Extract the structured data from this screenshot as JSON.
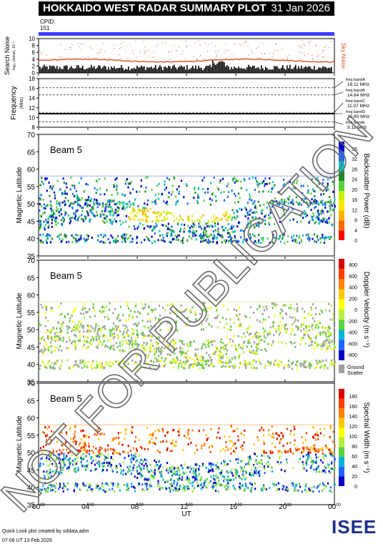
{
  "header": {
    "title": "HOKKAIDO WEST RADAR SUMMARY PLOT",
    "date": "31 Jan 2026",
    "cpid_label": "CPID:",
    "cpid_value": "151"
  },
  "colors": {
    "cpid_bar": "#3b3bff",
    "sky_noise": "#e0501e",
    "ground_scatter": "#a0a0a0",
    "logo_blue": "#1a2f8f",
    "logo_green": "#23a84a"
  },
  "chart_data": [
    {
      "type": "bar",
      "name": "search-noise-panel",
      "ylabel_line1": "Search Noise",
      "ylabel_line2": "log₁₀ (noise), 10⁻³",
      "ylim": [
        0,
        10
      ],
      "yticks": [
        "0",
        "2",
        "4",
        "6",
        "8",
        "10"
      ],
      "legend": "Sky Noise"
    },
    {
      "type": "line",
      "name": "frequency-panel",
      "ylabel": "Frequency",
      "yunit": "(MHz)",
      "ylim": [
        8,
        18
      ],
      "yticks": [
        "8",
        "10",
        "12",
        "14",
        "16",
        "18"
      ],
      "bands": [
        {
          "label": "freq bandA",
          "value": "16.11 MHz",
          "y": 16.11
        },
        {
          "label": "freq bandB",
          "value": "14.64 MHz",
          "y": 14.64
        },
        {
          "label": "freq bandC",
          "value": "11.07 MHz",
          "y": 11.07
        },
        {
          "label": "freq bandD",
          "value": "10.80 MHz",
          "y": 10.8
        },
        {
          "label": "freq bandE",
          "value": "9.11 MHz",
          "y": 9.11
        }
      ]
    },
    {
      "type": "heatmap",
      "name": "power-panel",
      "beam_label": "Beam  5",
      "ylabel": "Magnetic Latitude",
      "ylim": [
        35,
        70
      ],
      "yticks": [
        "35",
        "40",
        "45",
        "50",
        "55",
        "60",
        "65",
        "70"
      ],
      "colorbar_label": "Backscatter Power (dB)",
      "colorbar_ticks": [
        "0",
        "4",
        "8",
        "12",
        "16",
        "20",
        "24",
        "28",
        "32",
        "36"
      ]
    },
    {
      "type": "heatmap",
      "name": "velocity-panel",
      "beam_label": "Beam  5",
      "ylabel": "Magnetic Latitude",
      "ylim": [
        35,
        70
      ],
      "yticks": [
        "35",
        "40",
        "45",
        "50",
        "55",
        "60",
        "65",
        "70"
      ],
      "colorbar_label": "Doppler Velocity (m s⁻¹)",
      "colorbar_ticks": [
        "800",
        "600",
        "400",
        "200",
        "0",
        "-200",
        "-400",
        "-600",
        "-800"
      ],
      "ground_scatter_label_1": "Ground",
      "ground_scatter_label_2": "Scatter"
    },
    {
      "type": "heatmap",
      "name": "width-panel",
      "beam_label": "Beam  5",
      "ylabel": "Magnetic Latitude",
      "ylim": [
        35,
        70
      ],
      "yticks": [
        "35",
        "40",
        "45",
        "50",
        "55",
        "60",
        "65",
        "70"
      ],
      "colorbar_label": "Spectral Width (m s⁻¹)",
      "colorbar_ticks": [
        "0",
        "20",
        "40",
        "60",
        "80",
        "100",
        "120",
        "140",
        "160",
        "180"
      ]
    }
  ],
  "xaxis": {
    "label": "UT",
    "ticks": [
      {
        "h": "00",
        "m": "00"
      },
      {
        "h": "04",
        "m": "00"
      },
      {
        "h": "08",
        "m": "00"
      },
      {
        "h": "12",
        "m": "00"
      },
      {
        "h": "16",
        "m": "00"
      },
      {
        "h": "20",
        "m": "00"
      },
      {
        "h": "00",
        "m": "00"
      }
    ]
  },
  "watermark": "NOT FOR PUBLICATION",
  "footer": {
    "credit": "Quick Look plot created by sddata.adm",
    "generated": "07:06 UT 13 Feb 2026",
    "logo": "ISEE"
  }
}
